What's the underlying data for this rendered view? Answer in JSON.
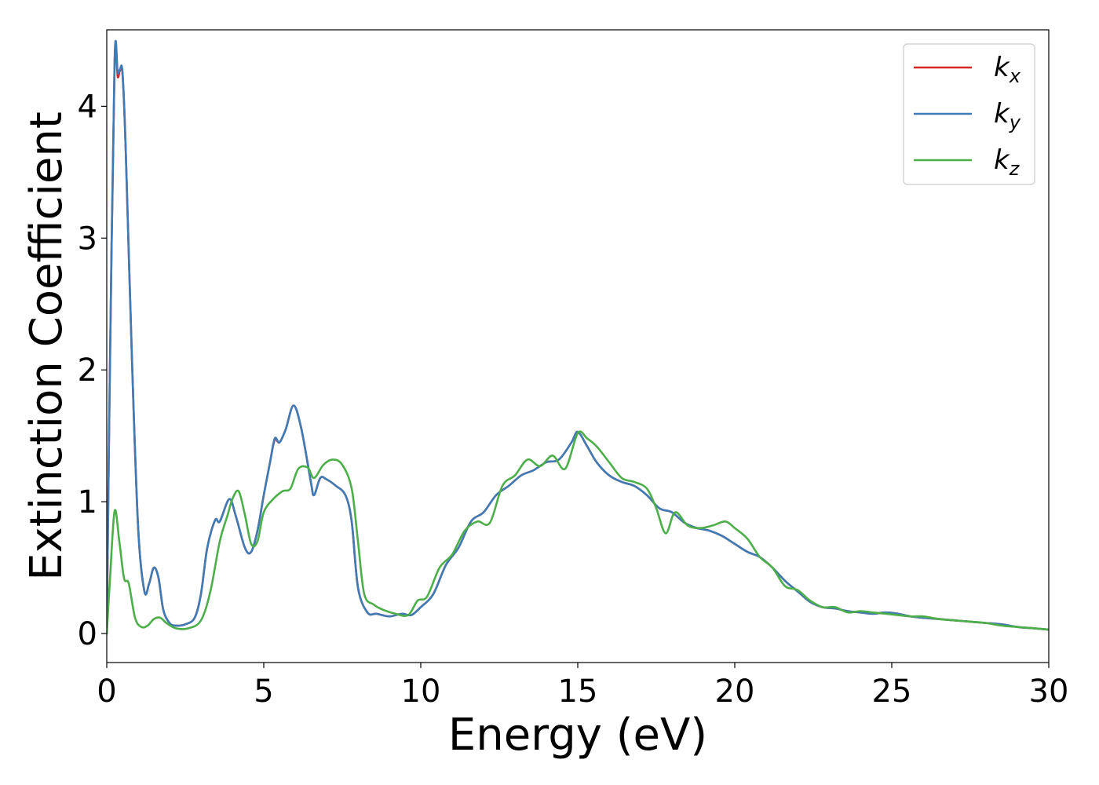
{
  "chart_data": {
    "type": "line",
    "title": "",
    "xlabel": "Energy (eV)",
    "ylabel": "Extinction Coefficient",
    "xlim": [
      0,
      30
    ],
    "ylim": [
      -0.22,
      4.58
    ],
    "xticks": [
      0,
      5,
      10,
      15,
      20,
      25,
      30
    ],
    "yticks": [
      0,
      1,
      2,
      3,
      4
    ],
    "grid": false,
    "legend_position": "top-right",
    "series": [
      {
        "name": "k_x",
        "legend_base": "k",
        "legend_sub": "x",
        "color": "#d62728",
        "x": [
          0,
          0.1,
          0.25,
          0.35,
          0.42,
          0.5,
          0.6,
          0.8,
          1.0,
          1.2,
          1.35,
          1.5,
          1.65,
          1.8,
          2.0,
          2.2,
          2.5,
          2.8,
          3.0,
          3.2,
          3.45,
          3.6,
          3.9,
          4.1,
          4.4,
          4.6,
          4.8,
          5.0,
          5.2,
          5.35,
          5.5,
          5.7,
          5.95,
          6.2,
          6.5,
          6.6,
          6.8,
          7.0,
          7.3,
          7.6,
          7.8,
          8.0,
          8.3,
          8.6,
          9.0,
          9.4,
          9.7,
          10.0,
          10.4,
          10.8,
          11.2,
          11.6,
          12.0,
          12.4,
          12.8,
          13.2,
          13.6,
          14.0,
          14.4,
          14.8,
          15.0,
          15.3,
          15.6,
          16.0,
          16.4,
          16.8,
          17.2,
          17.6,
          18.0,
          18.4,
          18.8,
          19.2,
          19.6,
          20.0,
          20.4,
          20.8,
          21.2,
          21.6,
          22.0,
          22.4,
          22.8,
          23.2,
          23.6,
          24.0,
          24.4,
          24.8,
          25.2,
          25.6,
          26.0,
          26.5,
          27.0,
          27.5,
          28.0,
          28.5,
          29.0,
          29.5,
          30.0
        ],
        "y": [
          0.0,
          2.0,
          4.32,
          4.22,
          4.27,
          4.25,
          3.7,
          2.1,
          0.8,
          0.32,
          0.38,
          0.5,
          0.42,
          0.18,
          0.08,
          0.06,
          0.07,
          0.12,
          0.3,
          0.65,
          0.86,
          0.85,
          1.02,
          0.9,
          0.65,
          0.62,
          0.78,
          1.05,
          1.3,
          1.47,
          1.45,
          1.55,
          1.73,
          1.55,
          1.15,
          1.05,
          1.18,
          1.17,
          1.12,
          1.05,
          0.85,
          0.35,
          0.16,
          0.15,
          0.13,
          0.15,
          0.14,
          0.2,
          0.3,
          0.52,
          0.65,
          0.85,
          0.92,
          1.05,
          1.12,
          1.2,
          1.24,
          1.3,
          1.32,
          1.45,
          1.53,
          1.42,
          1.3,
          1.2,
          1.15,
          1.12,
          1.05,
          0.95,
          0.92,
          0.84,
          0.8,
          0.78,
          0.74,
          0.68,
          0.62,
          0.58,
          0.5,
          0.4,
          0.32,
          0.24,
          0.2,
          0.19,
          0.17,
          0.16,
          0.15,
          0.16,
          0.15,
          0.13,
          0.12,
          0.11,
          0.1,
          0.09,
          0.08,
          0.07,
          0.05,
          0.04,
          0.03
        ]
      },
      {
        "name": "k_y",
        "legend_base": "k",
        "legend_sub": "y",
        "color": "#3f7cb5",
        "x": [
          0,
          0.1,
          0.25,
          0.35,
          0.42,
          0.5,
          0.6,
          0.8,
          1.0,
          1.2,
          1.35,
          1.5,
          1.65,
          1.8,
          2.0,
          2.2,
          2.5,
          2.8,
          3.0,
          3.2,
          3.45,
          3.6,
          3.9,
          4.1,
          4.4,
          4.6,
          4.8,
          5.0,
          5.2,
          5.35,
          5.5,
          5.7,
          5.95,
          6.2,
          6.5,
          6.6,
          6.8,
          7.0,
          7.3,
          7.6,
          7.8,
          8.0,
          8.3,
          8.6,
          9.0,
          9.4,
          9.7,
          10.0,
          10.4,
          10.8,
          11.2,
          11.6,
          12.0,
          12.4,
          12.8,
          13.2,
          13.6,
          14.0,
          14.4,
          14.8,
          15.0,
          15.3,
          15.6,
          16.0,
          16.4,
          16.8,
          17.2,
          17.6,
          18.0,
          18.4,
          18.8,
          19.2,
          19.6,
          20.0,
          20.4,
          20.8,
          21.2,
          21.6,
          22.0,
          22.4,
          22.8,
          23.2,
          23.6,
          24.0,
          24.4,
          24.8,
          25.2,
          25.6,
          26.0,
          26.5,
          27.0,
          27.5,
          28.0,
          28.5,
          29.0,
          29.5,
          30.0
        ],
        "y": [
          0.0,
          2.0,
          4.35,
          4.25,
          4.28,
          4.26,
          3.7,
          2.1,
          0.8,
          0.32,
          0.38,
          0.5,
          0.42,
          0.18,
          0.08,
          0.06,
          0.07,
          0.12,
          0.3,
          0.65,
          0.86,
          0.85,
          1.02,
          0.9,
          0.65,
          0.62,
          0.78,
          1.05,
          1.3,
          1.48,
          1.45,
          1.55,
          1.73,
          1.55,
          1.15,
          1.05,
          1.18,
          1.17,
          1.12,
          1.05,
          0.85,
          0.35,
          0.16,
          0.15,
          0.13,
          0.15,
          0.14,
          0.2,
          0.3,
          0.52,
          0.65,
          0.85,
          0.92,
          1.05,
          1.12,
          1.2,
          1.24,
          1.3,
          1.32,
          1.45,
          1.53,
          1.42,
          1.3,
          1.2,
          1.15,
          1.12,
          1.05,
          0.95,
          0.92,
          0.84,
          0.8,
          0.78,
          0.74,
          0.68,
          0.62,
          0.58,
          0.5,
          0.4,
          0.32,
          0.24,
          0.2,
          0.19,
          0.17,
          0.16,
          0.15,
          0.16,
          0.15,
          0.13,
          0.12,
          0.11,
          0.1,
          0.09,
          0.08,
          0.07,
          0.05,
          0.04,
          0.03
        ]
      },
      {
        "name": "k_z",
        "legend_base": "k",
        "legend_sub": "z",
        "color": "#4daf4a",
        "x": [
          0,
          0.1,
          0.25,
          0.4,
          0.55,
          0.7,
          0.9,
          1.1,
          1.3,
          1.5,
          1.7,
          1.9,
          2.2,
          2.6,
          3.0,
          3.3,
          3.6,
          3.85,
          4.0,
          4.2,
          4.4,
          4.6,
          4.8,
          5.0,
          5.3,
          5.6,
          5.85,
          6.1,
          6.4,
          6.6,
          6.9,
          7.2,
          7.5,
          7.8,
          8.0,
          8.2,
          8.5,
          8.8,
          9.2,
          9.6,
          9.9,
          10.2,
          10.6,
          11.0,
          11.4,
          11.8,
          12.2,
          12.6,
          13.0,
          13.4,
          13.8,
          14.2,
          14.6,
          15.0,
          15.3,
          15.6,
          16.0,
          16.4,
          16.8,
          17.2,
          17.5,
          17.8,
          18.1,
          18.5,
          18.9,
          19.3,
          19.7,
          20.0,
          20.4,
          20.8,
          21.2,
          21.6,
          22.0,
          22.4,
          22.8,
          23.2,
          23.6,
          24.0,
          24.4,
          24.8,
          25.2,
          25.6,
          26.0,
          26.5,
          27.0,
          27.5,
          28.0,
          28.5,
          29.0,
          29.5,
          30.0
        ],
        "y": [
          0.0,
          0.4,
          0.93,
          0.7,
          0.42,
          0.38,
          0.12,
          0.05,
          0.06,
          0.11,
          0.12,
          0.08,
          0.04,
          0.04,
          0.1,
          0.32,
          0.7,
          0.9,
          1.02,
          1.08,
          0.9,
          0.68,
          0.7,
          0.92,
          1.02,
          1.08,
          1.1,
          1.25,
          1.26,
          1.18,
          1.28,
          1.32,
          1.28,
          1.1,
          0.7,
          0.3,
          0.22,
          0.18,
          0.15,
          0.14,
          0.25,
          0.28,
          0.5,
          0.6,
          0.78,
          0.85,
          0.84,
          1.12,
          1.2,
          1.32,
          1.27,
          1.35,
          1.25,
          1.52,
          1.48,
          1.42,
          1.3,
          1.18,
          1.15,
          1.1,
          0.95,
          0.76,
          0.92,
          0.82,
          0.8,
          0.82,
          0.85,
          0.8,
          0.72,
          0.58,
          0.5,
          0.36,
          0.33,
          0.25,
          0.2,
          0.2,
          0.16,
          0.17,
          0.16,
          0.15,
          0.14,
          0.13,
          0.13,
          0.11,
          0.1,
          0.09,
          0.08,
          0.06,
          0.05,
          0.04,
          0.03
        ]
      }
    ]
  }
}
